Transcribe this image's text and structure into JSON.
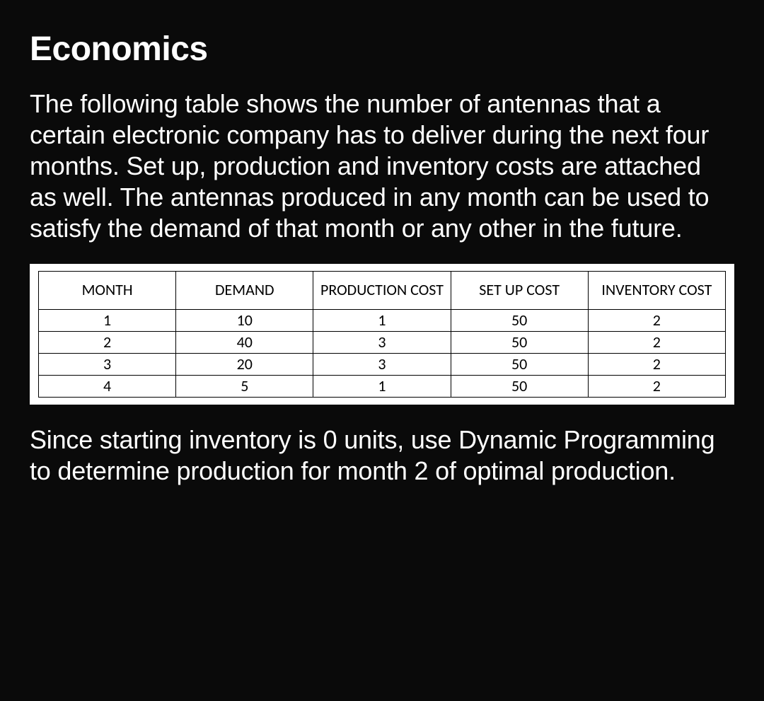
{
  "title": "Economics",
  "intro": "The following table shows the number of antennas that a certain electronic company has to deliver during the next four months. Set up, production and inventory costs are attached as well. The antennas produced in any month can be used to satisfy the demand of that month or any other in the future.",
  "outro": "Since starting inventory is 0 units, use Dynamic Programming to determine production for month 2 of optimal production.",
  "table": {
    "columns": [
      "MONTH",
      "DEMAND",
      "PRODUCTION COST",
      "SET UP COST",
      "INVENTORY COST"
    ],
    "rows": [
      [
        "1",
        "10",
        "1",
        "50",
        "2"
      ],
      [
        "2",
        "40",
        "3",
        "50",
        "2"
      ],
      [
        "3",
        "20",
        "3",
        "50",
        "2"
      ],
      [
        "4",
        "5",
        "1",
        "50",
        "2"
      ]
    ],
    "background_color": "#ffffff",
    "border_color": "#000000",
    "text_color": "#000000",
    "header_fontsize": 22,
    "cell_fontsize": 22
  },
  "page_background": "#0a0a0a",
  "page_text_color": "#ffffff",
  "title_fontsize": 48,
  "body_fontsize": 36
}
